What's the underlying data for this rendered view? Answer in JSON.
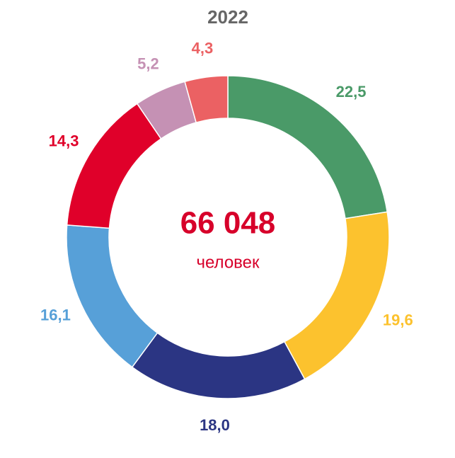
{
  "chart_data": {
    "type": "donut",
    "title": "2022",
    "center_text": "66 048",
    "center_subtext": "человек",
    "values": [
      22.5,
      19.6,
      18.0,
      16.1,
      14.3,
      5.2,
      4.3
    ],
    "value_labels": [
      "22,5",
      "19,6",
      "18,0",
      "16,1",
      "14,3",
      "5,2",
      "4,3"
    ],
    "colors": [
      "#4a9a68",
      "#fcc22e",
      "#2b3583",
      "#57a0d8",
      "#e0002a",
      "#c591b4",
      "#eb6163"
    ]
  }
}
